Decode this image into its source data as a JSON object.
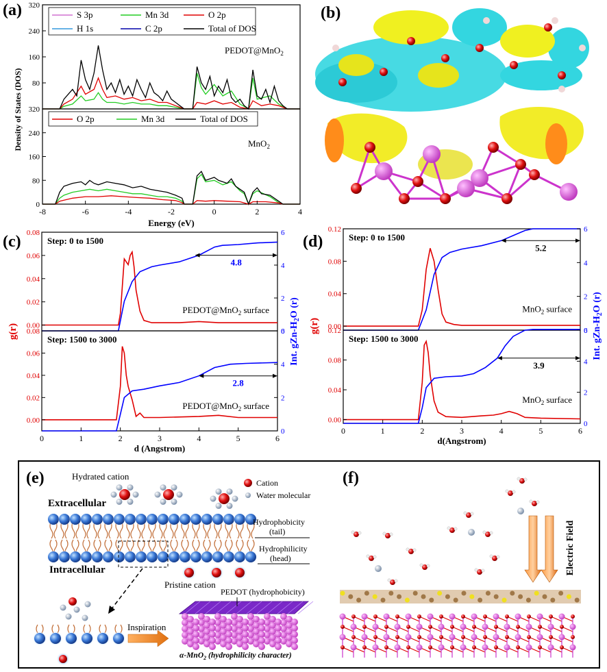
{
  "panel_labels": {
    "a": "(a)",
    "b": "(b)",
    "c": "(c)",
    "d": "(d)",
    "e": "(e)",
    "f": "(f)"
  },
  "colors": {
    "red": "#e00000",
    "green": "#22cc22",
    "black": "#000000",
    "blue": "#0000ff",
    "s3p": "#d070d0",
    "h1s": "#3399dd",
    "c2p": "#0000aa",
    "cyan": "#33d6e0",
    "yellow": "#f0f020",
    "orange": "#ff8c1a",
    "magenta": "#cc33cc",
    "atom_red": "#ee1111",
    "sphere": "#3a78d6",
    "purple": "#8a2be2"
  },
  "panel_a": {
    "ylabel": "Density of States (DOS)",
    "xlabel": "Energy (eV)",
    "xticks": [
      "-8",
      "-6",
      "-4",
      "-2",
      "0",
      "2",
      "4"
    ],
    "top": {
      "label": "PEDOT@MnO",
      "label_sub": "2",
      "yticks": [
        "0",
        "80",
        "160",
        "240",
        "320"
      ],
      "legend": [
        "S 3p",
        "Mn 3d",
        "O 2p",
        "H 1s",
        "C 2p",
        "Total of DOS"
      ]
    },
    "bottom": {
      "label": "MnO",
      "label_sub": "2",
      "yticks": [
        "0",
        "80",
        "160",
        "240",
        "320"
      ],
      "legend": [
        "O 2p",
        "Mn 3d",
        "Total of DOS"
      ]
    }
  },
  "panel_c": {
    "xlabel": "d (Angstrom)",
    "ylabel_left": "g(r)",
    "ylabel_right": "Int. gZn-H",
    "ylabel_right_sub": "2",
    "ylabel_right_end": "O (r)",
    "xticks": [
      "0",
      "1",
      "2",
      "3",
      "4",
      "5",
      "6"
    ],
    "top": {
      "step": "Step: 0 to 1500",
      "surface": "PEDOT@MnO",
      "surface_sub": "2",
      "surface_end": " surface",
      "annotation": "4.8",
      "left_ticks": [
        "0.00",
        "0.02",
        "0.04",
        "0.06",
        "0.08"
      ],
      "right_ticks": [
        "0",
        "2",
        "4",
        "6"
      ]
    },
    "bottom": {
      "step": "Step: 1500 to 3000",
      "surface": "PEDOT@MnO",
      "surface_sub": "2",
      "surface_end": " surface",
      "annotation": "2.8",
      "left_ticks": [
        "0.00",
        "0.02",
        "0.04",
        "0.06",
        "0.08"
      ],
      "right_ticks": [
        "0",
        "2",
        "4",
        "6"
      ]
    }
  },
  "panel_d": {
    "xlabel": "d(Angstrom)",
    "ylabel_left": "g(r)",
    "ylabel_right": "Int. gZn-H",
    "ylabel_right_sub": "2",
    "ylabel_right_end": "O (r)",
    "xticks": [
      "0",
      "1",
      "2",
      "3",
      "4",
      "5",
      "6"
    ],
    "top": {
      "step": "Step: 0 to 1500",
      "surface": "MnO",
      "surface_sub": "2",
      "surface_end": " surface",
      "annotation": "5.2",
      "left_ticks": [
        "0.00",
        "0.04",
        "0.08",
        "0.12"
      ],
      "right_ticks": [
        "0",
        "2",
        "4",
        "6"
      ]
    },
    "bottom": {
      "step": "Step: 1500 to 3000",
      "surface": "MnO",
      "surface_sub": "2",
      "surface_end": " surface",
      "annotation": "3.9",
      "left_ticks": [
        "0.00",
        "0.04",
        "0.08",
        "0.12"
      ],
      "right_ticks": [
        "0",
        "2",
        "4",
        "6"
      ]
    }
  },
  "panel_e": {
    "hydrated_cation": "Hydrated cation",
    "extracellular": "Extracellular",
    "intracellular": "Intracellular",
    "legend_cation": "Cation",
    "legend_water": "Water molecular",
    "hydrophobicity_tail": "Hydrophobicity",
    "tail": "(tail)",
    "hydrophilicity_head": "Hydrophilicity",
    "head": "(head)",
    "pristine_cation": "Pristine cation",
    "inspiration": "Inspiration",
    "pedot_label": "PEDOT (hydrophobicity)",
    "mno2_label": "α-MnO",
    "mno2_sub": "2",
    "mno2_end": " (hydrophilicity character)"
  },
  "panel_f": {
    "electric_field": "Electric Field"
  },
  "chart_data": [
    {
      "type": "line",
      "title": "PEDOT@MnO2",
      "xlabel": "Energy (eV)",
      "ylabel": "Density of States (DOS)",
      "xlim": [
        -8,
        4
      ],
      "ylim": [
        0,
        320
      ],
      "series": [
        {
          "name": "Total of DOS",
          "x": [
            -8,
            -7.2,
            -7,
            -6.8,
            -6.6,
            -6.4,
            -6.2,
            -6.0,
            -5.8,
            -5.6,
            -5.4,
            -5.2,
            -5.0,
            -4.8,
            -4.6,
            -4.4,
            -4.2,
            -4.0,
            -3.8,
            -3.6,
            -3.4,
            -3.2,
            -3.0,
            -2.8,
            -2.6,
            -2.4,
            -2.2,
            -2.0,
            -1.8,
            -1.6,
            -1.4,
            -1.2,
            -1.0,
            -0.8,
            -0.6,
            -0.4,
            -0.2,
            0,
            0.2,
            0.4,
            0.6,
            0.8,
            1.0,
            1.2,
            1.4,
            1.6,
            1.8,
            2.0,
            2.2,
            2.4,
            2.6,
            2.8,
            3.0,
            3.2,
            3.4,
            3.6,
            3.8,
            4.0
          ],
          "y": [
            0,
            0,
            30,
            45,
            60,
            40,
            150,
            90,
            60,
            110,
            195,
            120,
            60,
            80,
            50,
            90,
            45,
            70,
            40,
            90,
            60,
            35,
            80,
            50,
            40,
            25,
            55,
            30,
            20,
            10,
            0,
            0,
            0,
            130,
            80,
            60,
            100,
            40,
            70,
            50,
            90,
            35,
            20,
            30,
            10,
            0,
            120,
            40,
            30,
            60,
            20,
            70,
            25,
            10,
            0,
            0,
            0,
            0
          ]
        },
        {
          "name": "O 2p",
          "x": [
            -8,
            -7.2,
            -7,
            -6.6,
            -6.2,
            -6.0,
            -5.6,
            -5.4,
            -5.2,
            -5.0,
            -4.6,
            -4.2,
            -3.8,
            -3.4,
            -3.0,
            -2.6,
            -2.2,
            -1.8,
            -1.4,
            -1.0,
            -0.8,
            -0.4,
            0,
            0.4,
            0.8,
            1.2,
            1.6,
            1.8,
            2.2,
            2.6,
            3.0,
            3.4,
            4.0
          ],
          "y": [
            0,
            0,
            15,
            30,
            70,
            45,
            60,
            95,
            60,
            35,
            40,
            30,
            35,
            25,
            30,
            20,
            20,
            10,
            0,
            0,
            20,
            15,
            25,
            15,
            20,
            5,
            0,
            25,
            10,
            15,
            10,
            0,
            0
          ]
        },
        {
          "name": "Mn 3d",
          "x": [
            -8,
            -7.2,
            -7,
            -6.6,
            -6.2,
            -6.0,
            -5.6,
            -5.4,
            -5.2,
            -5.0,
            -4.6,
            -4.2,
            -3.8,
            -3.4,
            -3.0,
            -2.6,
            -2.2,
            -1.8,
            -1.4,
            -1.0,
            -0.8,
            -0.6,
            -0.4,
            0,
            0.4,
            0.8,
            1.2,
            1.6,
            1.8,
            2.0,
            2.6,
            3.0,
            3.4,
            4.0
          ],
          "y": [
            0,
            0,
            8,
            15,
            40,
            25,
            30,
            50,
            30,
            20,
            20,
            15,
            20,
            15,
            15,
            10,
            10,
            5,
            0,
            0,
            110,
            65,
            45,
            75,
            40,
            55,
            15,
            0,
            95,
            30,
            40,
            15,
            0,
            0
          ]
        }
      ]
    },
    {
      "type": "line",
      "title": "MnO2",
      "xlabel": "Energy (eV)",
      "ylabel": "Density of States (DOS)",
      "xlim": [
        -8,
        4
      ],
      "ylim": [
        0,
        320
      ],
      "series": [
        {
          "name": "Total of DOS",
          "x": [
            -8,
            -7.4,
            -7.2,
            -7.0,
            -6.6,
            -6.2,
            -6.0,
            -5.8,
            -5.6,
            -5.4,
            -5.0,
            -4.6,
            -4.2,
            -3.8,
            -3.4,
            -3.0,
            -2.6,
            -2.2,
            -1.8,
            -1.5,
            -1.4,
            -1.0,
            -0.8,
            -0.6,
            -0.4,
            -0.2,
            0,
            0.2,
            0.4,
            0.6,
            0.8,
            1.0,
            1.2,
            1.4,
            1.6,
            1.8,
            2.0,
            2.2,
            2.6,
            3.0,
            3.2,
            4.0
          ],
          "y": [
            0,
            0,
            40,
            60,
            70,
            75,
            65,
            80,
            70,
            65,
            75,
            70,
            65,
            55,
            60,
            50,
            45,
            40,
            30,
            20,
            0,
            0,
            95,
            110,
            80,
            85,
            90,
            80,
            75,
            70,
            85,
            60,
            50,
            40,
            0,
            40,
            55,
            35,
            30,
            10,
            0,
            0
          ]
        },
        {
          "name": "Mn 3d",
          "x": [
            -8,
            -7.4,
            -7.2,
            -7.0,
            -6.6,
            -6.2,
            -5.8,
            -5.4,
            -5.0,
            -4.6,
            -4.2,
            -3.8,
            -3.4,
            -3.0,
            -2.6,
            -2.2,
            -1.8,
            -1.5,
            -1.4,
            -1.0,
            -0.8,
            -0.6,
            -0.4,
            0,
            0.4,
            0.8,
            1.2,
            1.4,
            1.6,
            1.8,
            2.0,
            2.6,
            3.0,
            3.2,
            4.0
          ],
          "y": [
            0,
            0,
            20,
            30,
            40,
            45,
            50,
            45,
            50,
            45,
            40,
            35,
            35,
            30,
            25,
            25,
            20,
            10,
            0,
            0,
            85,
            100,
            75,
            80,
            65,
            75,
            45,
            35,
            0,
            35,
            45,
            25,
            5,
            0,
            0
          ]
        },
        {
          "name": "O 2p",
          "x": [
            -8,
            -7.4,
            -7.2,
            -6.6,
            -6.0,
            -5.4,
            -4.8,
            -4.2,
            -3.6,
            -3.0,
            -2.4,
            -1.8,
            -1.5,
            -1.4,
            -1.0,
            -0.8,
            -0.4,
            0,
            0.6,
            1.2,
            1.6,
            1.8,
            2.4,
            3.0,
            3.2,
            4.0
          ],
          "y": [
            0,
            0,
            10,
            20,
            25,
            25,
            28,
            25,
            22,
            20,
            15,
            12,
            5,
            0,
            0,
            12,
            10,
            12,
            10,
            8,
            0,
            8,
            8,
            4,
            0,
            0
          ]
        }
      ]
    },
    {
      "type": "line",
      "title": "PEDOT@MnO2 surface, Step: 0 to 1500",
      "xlabel": "d (Angstrom)",
      "ylabel": "g(r)",
      "ylabel_right": "Int. gZn-H2O (r)",
      "xlim": [
        0,
        6
      ],
      "ylim": [
        -0.005,
        0.08
      ],
      "ylim_right": [
        0,
        6
      ],
      "annotation": "4.8",
      "series": [
        {
          "name": "g(r)",
          "axis": "left",
          "x": [
            0,
            1.95,
            2.0,
            2.1,
            2.2,
            2.25,
            2.3,
            2.35,
            2.4,
            2.5,
            2.6,
            2.8,
            3.0,
            3.5,
            4.0,
            4.5,
            5.0,
            6.0
          ],
          "y": [
            0,
            0,
            0.01,
            0.057,
            0.052,
            0.06,
            0.063,
            0.05,
            0.03,
            0.012,
            0.004,
            0.002,
            0.002,
            0.002,
            0.003,
            0.002,
            0.002,
            0.002
          ]
        },
        {
          "name": "Int. gZn-H2O (r)",
          "axis": "right",
          "x": [
            0,
            1.95,
            2.1,
            2.3,
            2.5,
            2.8,
            3.0,
            3.5,
            4.0,
            4.4,
            4.6,
            5.0,
            5.5,
            6.0
          ],
          "y": [
            0,
            0,
            1.8,
            3.0,
            3.6,
            3.9,
            4.0,
            4.2,
            4.6,
            5.1,
            5.2,
            5.25,
            5.35,
            5.4
          ]
        }
      ]
    },
    {
      "type": "line",
      "title": "PEDOT@MnO2 surface, Step: 1500 to 3000",
      "xlabel": "d (Angstrom)",
      "ylabel": "g(r)",
      "ylabel_right": "Int. gZn-H2O (r)",
      "xlim": [
        0,
        6
      ],
      "ylim": [
        -0.01,
        0.08
      ],
      "ylim_right": [
        0,
        6
      ],
      "annotation": "2.8",
      "series": [
        {
          "name": "g(r)",
          "axis": "left",
          "x": [
            0,
            1.9,
            2.0,
            2.05,
            2.1,
            2.15,
            2.2,
            2.3,
            2.4,
            2.5,
            2.6,
            2.8,
            3.0,
            4.0,
            4.5,
            5.0,
            6.0
          ],
          "y": [
            0,
            0,
            0.03,
            0.066,
            0.06,
            0.04,
            0.03,
            0.018,
            0.003,
            0.006,
            0.002,
            0.002,
            0.002,
            0.003,
            0.004,
            0.002,
            0.002
          ]
        },
        {
          "name": "Int. gZn-H2O (r)",
          "axis": "right",
          "x": [
            0,
            1.9,
            2.0,
            2.1,
            2.3,
            2.6,
            3.0,
            3.5,
            4.0,
            4.4,
            4.8,
            5.2,
            6.0
          ],
          "y": [
            0,
            0,
            1.0,
            2.0,
            2.4,
            2.5,
            2.7,
            2.9,
            3.3,
            3.8,
            4.0,
            4.05,
            4.1
          ]
        }
      ]
    },
    {
      "type": "line",
      "title": "MnO2 surface, Step: 0 to 1500",
      "xlabel": "d(Angstrom)",
      "ylabel": "g(r)",
      "ylabel_right": "Int. gZn-H2O (r)",
      "xlim": [
        0,
        6
      ],
      "ylim": [
        -0.005,
        0.12
      ],
      "ylim_right": [
        0,
        6
      ],
      "annotation": "5.2",
      "series": [
        {
          "name": "g(r)",
          "axis": "left",
          "x": [
            0,
            1.9,
            2.0,
            2.1,
            2.2,
            2.3,
            2.4,
            2.5,
            2.6,
            2.8,
            3.0,
            4.0,
            6.0
          ],
          "y": [
            0,
            0,
            0.02,
            0.07,
            0.096,
            0.08,
            0.045,
            0.015,
            0.005,
            0.002,
            0.001,
            0.001,
            0.001
          ]
        },
        {
          "name": "Int. gZn-H2O (r)",
          "axis": "right",
          "x": [
            0,
            1.9,
            2.1,
            2.3,
            2.5,
            2.7,
            3.0,
            3.5,
            4.0,
            4.3,
            4.6,
            4.8,
            6.0
          ],
          "y": [
            0,
            0,
            1.2,
            3.3,
            4.3,
            4.6,
            4.8,
            5.0,
            5.3,
            5.6,
            5.9,
            6.0,
            6.0
          ]
        }
      ]
    },
    {
      "type": "line",
      "title": "MnO2 surface, Step: 1500 to 3000",
      "xlabel": "d(Angstrom)",
      "ylabel": "g(r)",
      "ylabel_right": "Int. gZn-H2O (r)",
      "xlim": [
        0,
        6
      ],
      "ylim": [
        -0.005,
        0.12
      ],
      "ylim_right": [
        0,
        6
      ],
      "annotation": "3.9",
      "series": [
        {
          "name": "g(r)",
          "axis": "left",
          "x": [
            0,
            1.9,
            2.0,
            2.05,
            2.1,
            2.15,
            2.2,
            2.3,
            2.4,
            2.6,
            3.0,
            3.5,
            3.8,
            4.0,
            4.2,
            4.4,
            4.6,
            5.0,
            6.0
          ],
          "y": [
            0,
            0,
            0.05,
            0.1,
            0.105,
            0.09,
            0.06,
            0.025,
            0.01,
            0.004,
            0.003,
            0.005,
            0.006,
            0.008,
            0.011,
            0.008,
            0.003,
            0.002,
            0.001
          ]
        },
        {
          "name": "Int. gZn-H2O (r)",
          "axis": "right",
          "x": [
            0,
            1.9,
            2.0,
            2.1,
            2.3,
            2.6,
            3.0,
            3.3,
            3.6,
            3.9,
            4.1,
            4.3,
            4.6,
            4.8,
            6.0
          ],
          "y": [
            0,
            0,
            1.0,
            2.3,
            2.9,
            3.0,
            3.05,
            3.2,
            3.6,
            4.2,
            5.0,
            5.6,
            6.0,
            6.05,
            6.05
          ]
        }
      ]
    }
  ]
}
